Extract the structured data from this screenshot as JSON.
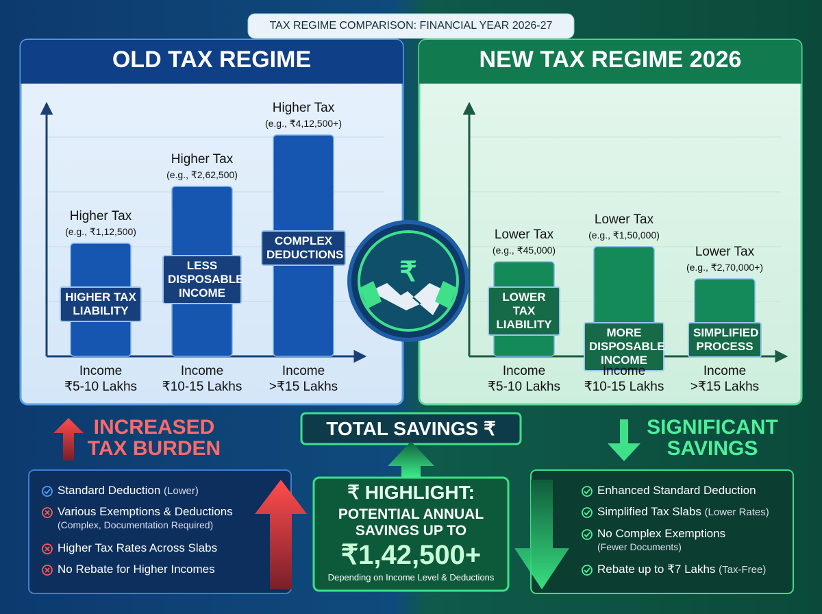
{
  "header": {
    "title": "TAX REGIME COMPARISON: FINANCIAL YEAR 2026-27"
  },
  "old_regime": {
    "title": "OLD TAX REGIME",
    "bars": [
      {
        "label": "Higher Tax",
        "example": "(e.g., ₹1,12,500)",
        "tag": "HIGHER TAX LIABILITY",
        "income_label": "Income",
        "income_range": "₹5-10 Lakhs"
      },
      {
        "label": "Higher Tax",
        "example": "(e.g., ₹2,62,500)",
        "tag": "LESS DISPOSABLE INCOME",
        "income_label": "Income",
        "income_range": "₹10-15 Lakhs"
      },
      {
        "label": "Higher Tax",
        "example": "(e.g., ₹4,12,500+)",
        "tag": "COMPLEX DEDUCTIONS",
        "income_label": "Income",
        "income_range": ">₹15 Lakhs"
      }
    ],
    "callout": [
      "INCREASED",
      "TAX BURDEN"
    ],
    "points": [
      {
        "text": "Standard Deduction",
        "note": "(Lower)"
      },
      {
        "text": "Various Exemptions & Deductions",
        "note": "(Complex, Documentation Required)"
      },
      {
        "text": "Higher Tax Rates Across Slabs",
        "note": null
      },
      {
        "text": "No Rebate for Higher Incomes",
        "note": null
      }
    ]
  },
  "new_regime": {
    "title": "NEW TAX REGIME 2026",
    "bars": [
      {
        "label": "Lower Tax",
        "example": "(e.g., ₹45,000)",
        "tag": "LOWER TAX LIABILITY",
        "income_label": "Income",
        "income_range": "₹5-10 Lakhs"
      },
      {
        "label": "Lower Tax",
        "example": "(e.g., ₹1,50,000)",
        "tag": "MORE DISPOSABLE INCOME",
        "income_label": "Income",
        "income_range": "₹10-15 Lakhs"
      },
      {
        "label": "Lower Tax",
        "example": "(e.g., ₹2,70,000+)",
        "tag": "SIMPLIFIED PROCESS",
        "income_label": "Income",
        "income_range": ">₹15 Lakhs"
      }
    ],
    "callout": [
      "SIGNIFICANT",
      "SAVINGS"
    ],
    "points": [
      {
        "text": "Enhanced Standard Deduction",
        "note": null
      },
      {
        "text": "Simplified Tax Slabs",
        "note": "(Lower Rates)"
      },
      {
        "text": "No Complex Exemptions",
        "note": "(Fewer Documents)"
      },
      {
        "text": "Rebate up to ₹7 Lakhs",
        "note": "(Tax-Free)"
      }
    ]
  },
  "savings": {
    "title": "TOTAL SAVINGS ₹",
    "highlight": "₹ HIGHLIGHT:",
    "line": "POTENTIAL ANNUAL SAVINGS UP TO",
    "amount": "₹1,42,500+",
    "footnote": "Depending on Income Level & Deductions"
  }
}
